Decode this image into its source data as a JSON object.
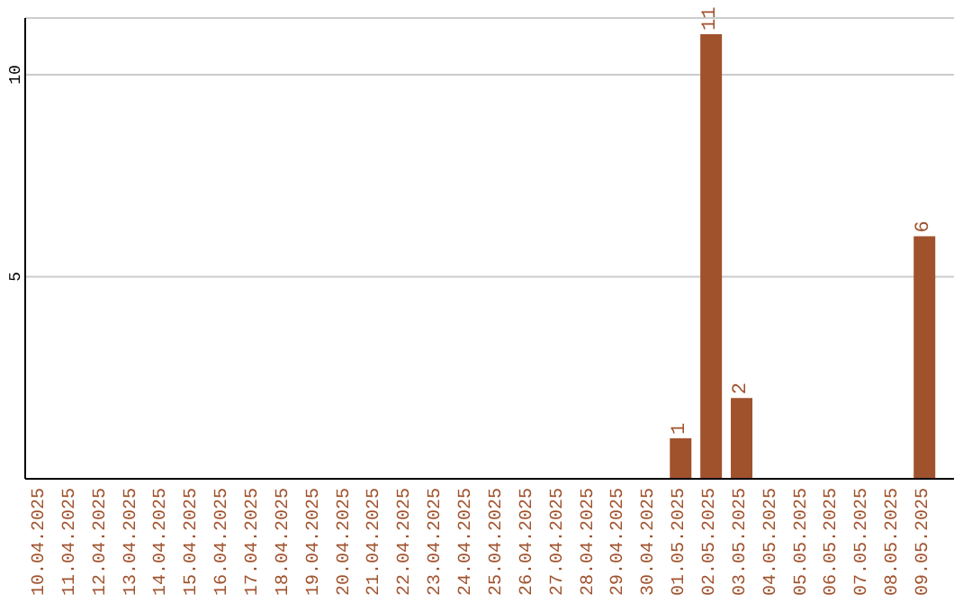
{
  "chart_data": {
    "type": "bar",
    "categories": [
      "10.04.2025",
      "11.04.2025",
      "12.04.2025",
      "13.04.2025",
      "14.04.2025",
      "15.04.2025",
      "16.04.2025",
      "17.04.2025",
      "18.04.2025",
      "19.04.2025",
      "20.04.2025",
      "21.04.2025",
      "22.04.2025",
      "23.04.2025",
      "24.04.2025",
      "25.04.2025",
      "26.04.2025",
      "27.04.2025",
      "28.04.2025",
      "29.04.2025",
      "30.04.2025",
      "01.05.2025",
      "02.05.2025",
      "03.05.2025",
      "04.05.2025",
      "05.05.2025",
      "06.05.2025",
      "07.05.2025",
      "08.05.2025",
      "09.05.2025"
    ],
    "values": [
      0,
      0,
      0,
      0,
      0,
      0,
      0,
      0,
      0,
      0,
      0,
      0,
      0,
      0,
      0,
      0,
      0,
      0,
      0,
      0,
      0,
      1,
      11,
      2,
      0,
      0,
      0,
      0,
      0,
      6
    ],
    "color": "#a0522d",
    "ylim": [
      0,
      11.4
    ],
    "yticks": [
      5,
      10
    ],
    "grid": "y",
    "value_labels": [
      null,
      null,
      null,
      null,
      null,
      null,
      null,
      null,
      null,
      null,
      null,
      null,
      null,
      null,
      null,
      null,
      null,
      null,
      null,
      null,
      null,
      "1",
      "11",
      "2",
      null,
      null,
      null,
      null,
      null,
      "6"
    ]
  }
}
